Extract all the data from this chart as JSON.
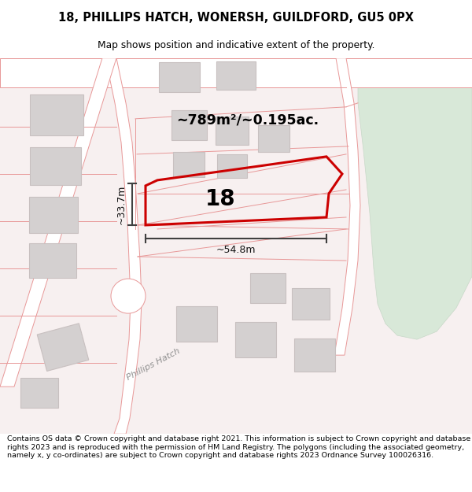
{
  "title_line1": "18, PHILLIPS HATCH, WONERSH, GUILDFORD, GU5 0PX",
  "title_line2": "Map shows position and indicative extent of the property.",
  "footer_text": "Contains OS data © Crown copyright and database right 2021. This information is subject to Crown copyright and database rights 2023 and is reproduced with the permission of HM Land Registry. The polygons (including the associated geometry, namely x, y co-ordinates) are subject to Crown copyright and database rights 2023 Ordnance Survey 100026316.",
  "area_label": "~789m²/~0.195ac.",
  "width_label": "~54.8m",
  "height_label": "~33.7m",
  "number_label": "18",
  "map_bg": "#f7f0f0",
  "building_fill": "#d4d0d0",
  "building_edge": "#c8c0c0",
  "green_fill": "#d8e8d8",
  "green_edge": "#c8d8c8",
  "plot_outline_color": "#cc0000",
  "road_line_color": "#e89898",
  "dim_line_color": "#404040",
  "street_label": "Phillips Hatch",
  "white": "#ffffff"
}
